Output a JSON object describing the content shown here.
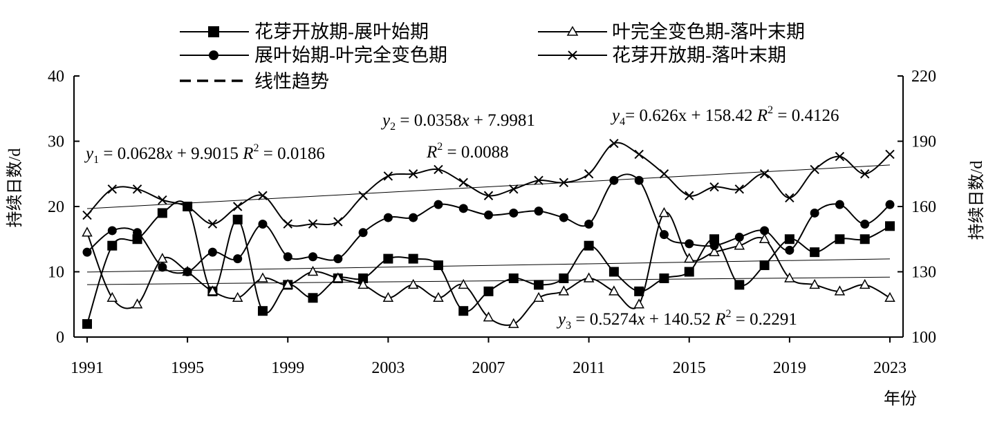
{
  "chart_data": {
    "type": "line",
    "x_label": "年份",
    "y_label_left": "持续日数/d",
    "y_label_right": "持续日数/d",
    "x_range": [
      1991,
      2023
    ],
    "x_ticks": [
      1991,
      1995,
      1999,
      2003,
      2007,
      2011,
      2015,
      2019,
      2023
    ],
    "ylim_left": [
      0,
      40
    ],
    "yticks_left": [
      0,
      10,
      20,
      30,
      40
    ],
    "ylim_right": [
      100,
      220
    ],
    "yticks_right": [
      100,
      130,
      160,
      190,
      220
    ],
    "grid": false,
    "legend_position": "top",
    "years": [
      1991,
      1992,
      1993,
      1994,
      1995,
      1996,
      1997,
      1998,
      1999,
      2000,
      2001,
      2002,
      2003,
      2004,
      2005,
      2006,
      2007,
      2008,
      2009,
      2010,
      2011,
      2012,
      2013,
      2014,
      2015,
      2016,
      2017,
      2018,
      2019,
      2020,
      2021,
      2022,
      2023
    ],
    "series": [
      {
        "name": "花芽开放期-展叶始期",
        "axis": "left",
        "marker": "square",
        "values": [
          2,
          14,
          15,
          19,
          20,
          7,
          18,
          4,
          8,
          6,
          9,
          9,
          12,
          12,
          11,
          4,
          7,
          9,
          8,
          9,
          14,
          10,
          7,
          9,
          10,
          15,
          8,
          11,
          15,
          13,
          15,
          15,
          17
        ]
      },
      {
        "name": "叶完全变色期-落叶末期",
        "axis": "left",
        "marker": "triangle",
        "values": [
          16,
          6,
          5,
          12,
          10,
          7,
          6,
          9,
          8,
          10,
          9,
          8,
          6,
          8,
          6,
          8,
          3,
          2,
          6,
          7,
          9,
          7,
          5,
          19,
          12,
          13,
          14,
          15,
          9,
          8,
          7,
          8,
          6
        ]
      },
      {
        "name": "展叶始期-叶完全变色期",
        "axis": "left",
        "marker": "circle",
        "values": [
          13,
          16.3,
          16,
          10.7,
          10,
          13,
          12,
          17.3,
          12.3,
          12.3,
          12,
          16,
          18.3,
          18.3,
          20.3,
          19.7,
          18.7,
          19,
          19.3,
          18.3,
          17.3,
          24,
          24,
          15.7,
          14.3,
          14,
          15.3,
          16.3,
          13.3,
          19,
          20.3,
          17.3,
          20.3
        ]
      },
      {
        "name": "花芽开放期-落叶末期",
        "axis": "right",
        "marker": "x",
        "values": [
          156,
          168,
          168,
          163,
          160,
          152,
          160,
          165,
          152,
          152,
          153,
          165,
          174,
          175,
          177,
          171,
          165,
          168,
          172,
          171,
          175,
          189,
          184,
          175,
          165,
          169,
          168,
          175,
          164,
          177,
          183,
          175,
          184
        ]
      }
    ],
    "trend_legend": "线性趋势",
    "trendlines": [
      {
        "name": "y1",
        "axis": "left",
        "slope": 0.0628,
        "intercept": 9.9015,
        "r2": 0.0186
      },
      {
        "name": "y2",
        "axis": "left",
        "slope": 0.0358,
        "intercept": 7.9981,
        "r2": 0.0088
      },
      {
        "name": "y3",
        "axis": "left",
        "slope": 0.5274,
        "intercept": 140.52,
        "r2": 0.2291
      },
      {
        "name": "y4",
        "axis": "right",
        "slope": 0.626,
        "intercept": 158.42,
        "r2": 0.4126
      }
    ],
    "annotations": {
      "y1_lhs": "y",
      "y1_sub": "1",
      "y1_rhs": " = 0.0628",
      "y1_x": "x",
      "y1_tail": " + 9.9015 ",
      "y1_r": "R",
      "y1_sup": "2",
      "y1_val": " = 0.0186",
      "y2_lhs": "y",
      "y2_sub": "2",
      "y2_rhs": " = 0.0358",
      "y2_x": "x",
      "y2_tail": " + 7.9981",
      "y2_r": "R",
      "y2_sup": "2",
      "y2_val": " = 0.0088",
      "y3_lhs": "y",
      "y3_sub": "3",
      "y3_rhs": " = 0.5274",
      "y3_x": "x",
      "y3_tail": " + 140.52 ",
      "y3_r": "R",
      "y3_sup": "2",
      "y3_val": " = 0.2291",
      "y4_lhs": "y",
      "y4_sub": "4",
      "y4_rhs": "= 0.626x + 158.42 ",
      "y4_r": "R",
      "y4_sup": "2",
      "y4_val": " = 0.4126"
    }
  }
}
